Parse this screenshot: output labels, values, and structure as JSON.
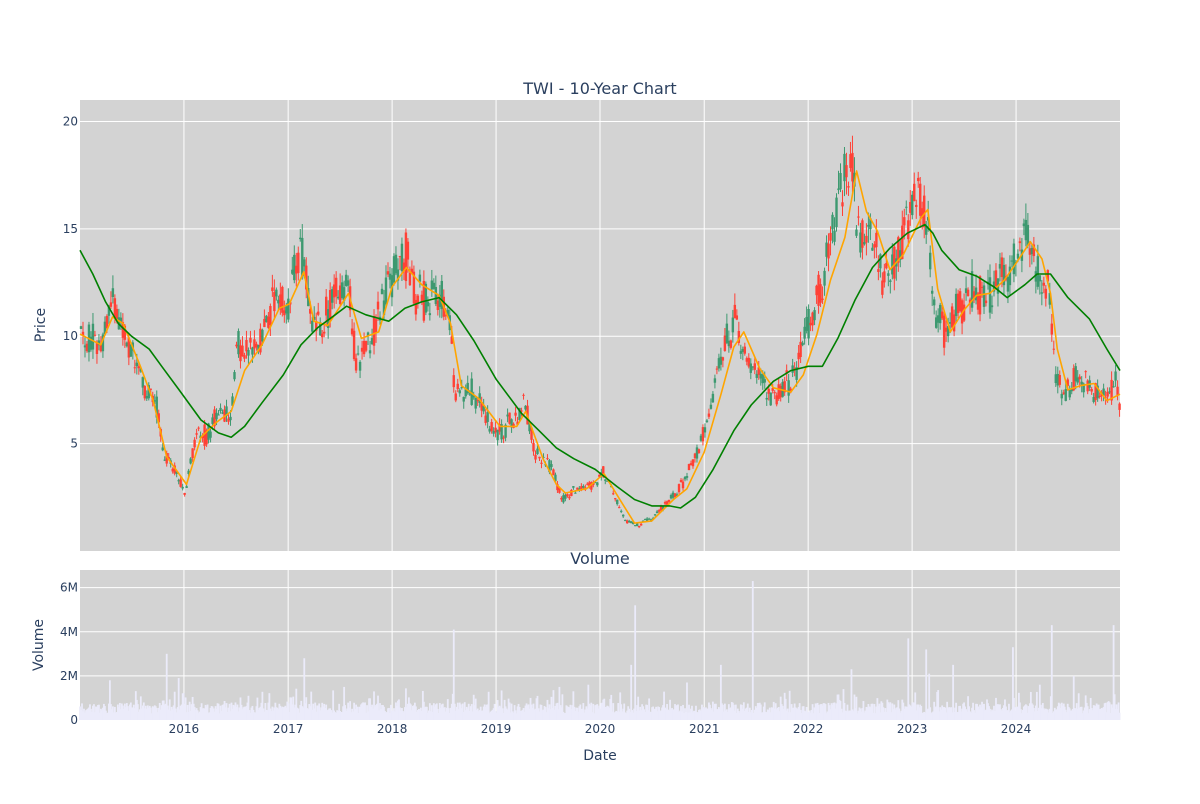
{
  "chart_data": [
    {
      "type": "candlestick",
      "title": "TWI - 10-Year Chart",
      "xlabel": "",
      "ylabel": "Price",
      "xlim": [
        "2015-01-01",
        "2024-12-31"
      ],
      "ylim": [
        0,
        21
      ],
      "yticks": [
        5,
        10,
        15,
        20
      ],
      "grid": true,
      "colors": {
        "increasing": "#3d9970",
        "decreasing": "#ff4136",
        "ma_short": "#ffa500",
        "ma_long": "#008000",
        "plot_bg": "#d3d3d3",
        "grid": "#ffffff"
      },
      "price_path": [
        [
          "2015-01-01",
          10.0
        ],
        [
          "2015-03-15",
          9.5
        ],
        [
          "2015-04-20",
          11.8
        ],
        [
          "2015-05-20",
          10.9
        ],
        [
          "2015-07-01",
          9.2
        ],
        [
          "2015-08-20",
          7.5
        ],
        [
          "2015-10-01",
          6.7
        ],
        [
          "2015-10-20",
          4.5
        ],
        [
          "2015-12-01",
          3.8
        ],
        [
          "2016-01-05",
          2.7
        ],
        [
          "2016-02-15",
          5.7
        ],
        [
          "2016-03-20",
          5.3
        ],
        [
          "2016-05-01",
          6.6
        ],
        [
          "2016-06-15",
          6.4
        ],
        [
          "2016-07-05",
          9.6
        ],
        [
          "2016-08-15",
          9.1
        ],
        [
          "2016-10-01",
          10.2
        ],
        [
          "2016-11-15",
          11.9
        ],
        [
          "2016-12-31",
          11.3
        ],
        [
          "2017-01-25",
          13.2
        ],
        [
          "2017-02-25",
          13.7
        ],
        [
          "2017-03-25",
          10.1
        ],
        [
          "2017-05-01",
          10.4
        ],
        [
          "2017-06-15",
          12.0
        ],
        [
          "2017-08-01",
          12.6
        ],
        [
          "2017-08-25",
          8.7
        ],
        [
          "2017-10-15",
          9.8
        ],
        [
          "2017-11-15",
          11.2
        ],
        [
          "2018-01-01",
          12.7
        ],
        [
          "2018-02-20",
          13.8
        ],
        [
          "2018-03-25",
          12.0
        ],
        [
          "2018-05-01",
          11.6
        ],
        [
          "2018-06-15",
          12.3
        ],
        [
          "2018-07-25",
          10.4
        ],
        [
          "2018-08-10",
          7.3
        ],
        [
          "2018-10-01",
          7.6
        ],
        [
          "2018-11-15",
          6.6
        ],
        [
          "2019-01-01",
          5.3
        ],
        [
          "2019-02-15",
          5.9
        ],
        [
          "2019-04-15",
          6.8
        ],
        [
          "2019-05-15",
          4.6
        ],
        [
          "2019-07-15",
          3.9
        ],
        [
          "2019-08-20",
          2.4
        ],
        [
          "2019-10-15",
          2.9
        ],
        [
          "2019-12-15",
          3.1
        ],
        [
          "2020-01-10",
          3.8
        ],
        [
          "2020-02-20",
          2.6
        ],
        [
          "2020-04-01",
          1.4
        ],
        [
          "2020-05-15",
          1.2
        ],
        [
          "2020-07-10",
          1.6
        ],
        [
          "2020-09-01",
          2.4
        ],
        [
          "2020-10-15",
          3.1
        ],
        [
          "2020-12-15",
          4.8
        ],
        [
          "2021-01-15",
          6.2
        ],
        [
          "2021-03-01",
          9.0
        ],
        [
          "2021-04-20",
          10.8
        ],
        [
          "2021-05-20",
          9.0
        ],
        [
          "2021-07-10",
          8.2
        ],
        [
          "2021-09-01",
          7.0
        ],
        [
          "2021-10-15",
          7.8
        ],
        [
          "2021-11-20",
          8.2
        ],
        [
          "2022-01-01",
          10.7
        ],
        [
          "2022-02-20",
          12.5
        ],
        [
          "2022-03-25",
          14.8
        ],
        [
          "2022-04-25",
          16.5
        ],
        [
          "2022-06-01",
          19.1
        ],
        [
          "2022-06-25",
          14.5
        ],
        [
          "2022-08-10",
          15.5
        ],
        [
          "2022-09-20",
          12.6
        ],
        [
          "2022-11-15",
          13.9
        ],
        [
          "2022-12-25",
          15.5
        ],
        [
          "2023-01-20",
          16.8
        ],
        [
          "2023-02-25",
          15.3
        ],
        [
          "2023-03-20",
          10.8
        ],
        [
          "2023-05-01",
          10.2
        ],
        [
          "2023-06-15",
          11.4
        ],
        [
          "2023-08-01",
          12.2
        ],
        [
          "2023-09-15",
          11.8
        ],
        [
          "2023-11-01",
          12.6
        ],
        [
          "2023-12-15",
          13.1
        ],
        [
          "2024-01-15",
          14.8
        ],
        [
          "2024-02-25",
          14.2
        ],
        [
          "2024-03-25",
          12.6
        ],
        [
          "2024-04-20",
          12.3
        ],
        [
          "2024-05-20",
          8.6
        ],
        [
          "2024-06-15",
          7.2
        ],
        [
          "2024-07-25",
          8.0
        ],
        [
          "2024-09-01",
          8.0
        ],
        [
          "2024-10-01",
          7.3
        ],
        [
          "2024-11-25",
          7.0
        ],
        [
          "2024-12-10",
          8.2
        ],
        [
          "2024-12-31",
          6.9
        ]
      ],
      "series": [
        {
          "kind": "moving_average_short",
          "points": [
            [
              "2015-01-01",
              10.1
            ],
            [
              "2015-03-15",
              9.6
            ],
            [
              "2015-04-25",
              10.9
            ],
            [
              "2015-06-01",
              10.6
            ],
            [
              "2015-08-01",
              8.6
            ],
            [
              "2015-09-15",
              7.0
            ],
            [
              "2015-11-01",
              4.4
            ],
            [
              "2016-01-10",
              3.1
            ],
            [
              "2016-03-01",
              5.3
            ],
            [
              "2016-04-25",
              6.0
            ],
            [
              "2016-06-15",
              6.5
            ],
            [
              "2016-08-01",
              8.4
            ],
            [
              "2016-10-01",
              9.6
            ],
            [
              "2016-12-01",
              11.3
            ],
            [
              "2017-01-05",
              11.5
            ],
            [
              "2017-02-25",
              13.0
            ],
            [
              "2017-04-01",
              10.7
            ],
            [
              "2017-05-20",
              10.5
            ],
            [
              "2017-08-01",
              12.0
            ],
            [
              "2017-09-15",
              9.9
            ],
            [
              "2017-11-15",
              10.2
            ],
            [
              "2018-01-01",
              12.3
            ],
            [
              "2018-02-20",
              13.2
            ],
            [
              "2018-04-15",
              12.4
            ],
            [
              "2018-06-15",
              11.9
            ],
            [
              "2018-07-25",
              10.6
            ],
            [
              "2018-09-01",
              7.7
            ],
            [
              "2018-11-01",
              7.1
            ],
            [
              "2019-01-15",
              5.8
            ],
            [
              "2019-03-15",
              5.8
            ],
            [
              "2019-04-15",
              6.5
            ],
            [
              "2019-06-15",
              4.3
            ],
            [
              "2019-08-01",
              3.1
            ],
            [
              "2019-09-01",
              2.7
            ],
            [
              "2019-11-15",
              2.9
            ],
            [
              "2020-01-15",
              3.6
            ],
            [
              "2020-03-15",
              2.3
            ],
            [
              "2020-05-01",
              1.3
            ],
            [
              "2020-07-01",
              1.4
            ],
            [
              "2020-09-15",
              2.4
            ],
            [
              "2020-11-01",
              2.9
            ],
            [
              "2021-01-01",
              4.6
            ],
            [
              "2021-03-01",
              7.3
            ],
            [
              "2021-04-15",
              9.5
            ],
            [
              "2021-05-20",
              10.2
            ],
            [
              "2021-07-15",
              8.5
            ],
            [
              "2021-09-01",
              7.6
            ],
            [
              "2021-11-01",
              7.4
            ],
            [
              "2021-12-15",
              8.2
            ],
            [
              "2022-02-01",
              10.1
            ],
            [
              "2022-03-20",
              12.6
            ],
            [
              "2022-05-10",
              14.6
            ],
            [
              "2022-06-20",
              17.7
            ],
            [
              "2022-07-25",
              15.8
            ],
            [
              "2022-09-01",
              14.9
            ],
            [
              "2022-10-15",
              13.1
            ],
            [
              "2022-12-01",
              13.8
            ],
            [
              "2023-02-01",
              15.5
            ],
            [
              "2023-02-25",
              15.9
            ],
            [
              "2023-04-01",
              12.2
            ],
            [
              "2023-05-15",
              10.2
            ],
            [
              "2023-07-01",
              11.2
            ],
            [
              "2023-08-15",
              11.9
            ],
            [
              "2023-10-01",
              12.0
            ],
            [
              "2023-11-20",
              12.6
            ],
            [
              "2024-01-01",
              13.4
            ],
            [
              "2024-02-20",
              14.4
            ],
            [
              "2024-04-01",
              13.6
            ],
            [
              "2024-05-01",
              12.0
            ],
            [
              "2024-05-25",
              9.4
            ],
            [
              "2024-07-01",
              7.5
            ],
            [
              "2024-08-15",
              7.7
            ],
            [
              "2024-10-01",
              7.8
            ],
            [
              "2024-11-15",
              7.0
            ],
            [
              "2024-12-31",
              7.3
            ]
          ]
        },
        {
          "kind": "moving_average_long",
          "points": [
            [
              "2015-01-01",
              14.0
            ],
            [
              "2015-02-15",
              12.9
            ],
            [
              "2015-04-01",
              11.6
            ],
            [
              "2015-05-15",
              10.6
            ],
            [
              "2015-07-01",
              10.0
            ],
            [
              "2015-09-01",
              9.4
            ],
            [
              "2015-10-15",
              8.6
            ],
            [
              "2015-12-15",
              7.5
            ],
            [
              "2016-03-01",
              6.1
            ],
            [
              "2016-05-01",
              5.5
            ],
            [
              "2016-06-15",
              5.3
            ],
            [
              "2016-08-01",
              5.8
            ],
            [
              "2016-10-01",
              6.9
            ],
            [
              "2016-12-15",
              8.2
            ],
            [
              "2017-02-15",
              9.6
            ],
            [
              "2017-04-15",
              10.4
            ],
            [
              "2017-06-15",
              11.0
            ],
            [
              "2017-07-25",
              11.4
            ],
            [
              "2017-10-01",
              11.0
            ],
            [
              "2017-12-20",
              10.7
            ],
            [
              "2018-02-15",
              11.3
            ],
            [
              "2018-04-15",
              11.6
            ],
            [
              "2018-06-15",
              11.8
            ],
            [
              "2018-08-15",
              11.0
            ],
            [
              "2018-10-15",
              9.8
            ],
            [
              "2019-01-01",
              8.0
            ],
            [
              "2019-04-01",
              6.4
            ],
            [
              "2019-06-01",
              5.6
            ],
            [
              "2019-08-01",
              4.8
            ],
            [
              "2019-10-01",
              4.3
            ],
            [
              "2019-12-15",
              3.8
            ],
            [
              "2020-03-01",
              3.0
            ],
            [
              "2020-05-01",
              2.4
            ],
            [
              "2020-07-01",
              2.1
            ],
            [
              "2020-09-01",
              2.1
            ],
            [
              "2020-10-10",
              2.0
            ],
            [
              "2020-12-01",
              2.5
            ],
            [
              "2021-02-01",
              3.8
            ],
            [
              "2021-04-15",
              5.6
            ],
            [
              "2021-06-15",
              6.8
            ],
            [
              "2021-09-01",
              7.9
            ],
            [
              "2021-11-01",
              8.4
            ],
            [
              "2022-01-01",
              8.6
            ],
            [
              "2022-02-20",
              8.6
            ],
            [
              "2022-04-15",
              9.9
            ],
            [
              "2022-06-15",
              11.7
            ],
            [
              "2022-08-15",
              13.2
            ],
            [
              "2022-10-15",
              14.1
            ],
            [
              "2022-12-15",
              14.8
            ],
            [
              "2023-02-15",
              15.2
            ],
            [
              "2023-03-15",
              14.8
            ],
            [
              "2023-04-15",
              14.0
            ],
            [
              "2023-06-15",
              13.1
            ],
            [
              "2023-08-15",
              12.8
            ],
            [
              "2023-10-15",
              12.3
            ],
            [
              "2023-12-01",
              11.8
            ],
            [
              "2024-02-01",
              12.4
            ],
            [
              "2024-03-15",
              12.9
            ],
            [
              "2024-05-01",
              12.9
            ],
            [
              "2024-07-01",
              11.8
            ],
            [
              "2024-09-15",
              10.8
            ],
            [
              "2024-11-15",
              9.4
            ],
            [
              "2024-12-31",
              8.4
            ]
          ]
        }
      ]
    },
    {
      "type": "bar",
      "title": "Volume",
      "xlabel": "Date",
      "ylabel": "Volume",
      "xlim": [
        "2015-01-01",
        "2024-12-31"
      ],
      "ylim": [
        0,
        6800000
      ],
      "yticks": [
        0,
        2000000,
        4000000,
        6000000
      ],
      "ytick_labels": [
        "0",
        "2M",
        "4M",
        "6M"
      ],
      "xtick_labels": [
        "2016",
        "2017",
        "2018",
        "2019",
        "2020",
        "2021",
        "2022",
        "2023",
        "2024"
      ],
      "grid": true,
      "colors": {
        "bar": "#ebebfa",
        "plot_bg": "#d3d3d3",
        "grid": "#ffffff"
      },
      "spikes": [
        [
          "2015-04-15",
          1800000
        ],
        [
          "2015-11-01",
          3000000
        ],
        [
          "2015-12-15",
          1900000
        ],
        [
          "2017-02-25",
          2800000
        ],
        [
          "2017-07-15",
          1500000
        ],
        [
          "2018-08-05",
          4100000
        ],
        [
          "2019-08-10",
          1500000
        ],
        [
          "2019-11-20",
          1600000
        ],
        [
          "2020-04-20",
          2500000
        ],
        [
          "2020-05-05",
          5200000
        ],
        [
          "2020-11-01",
          1700000
        ],
        [
          "2021-03-01",
          2500000
        ],
        [
          "2021-06-20",
          6300000
        ],
        [
          "2022-05-05",
          1400000
        ],
        [
          "2022-06-01",
          2300000
        ],
        [
          "2022-12-20",
          3700000
        ],
        [
          "2023-02-20",
          3200000
        ],
        [
          "2023-03-01",
          2100000
        ],
        [
          "2023-05-25",
          2500000
        ],
        [
          "2023-12-20",
          3300000
        ],
        [
          "2024-03-25",
          1600000
        ],
        [
          "2024-05-05",
          4300000
        ],
        [
          "2024-07-20",
          2000000
        ],
        [
          "2024-12-10",
          4300000
        ]
      ]
    }
  ]
}
